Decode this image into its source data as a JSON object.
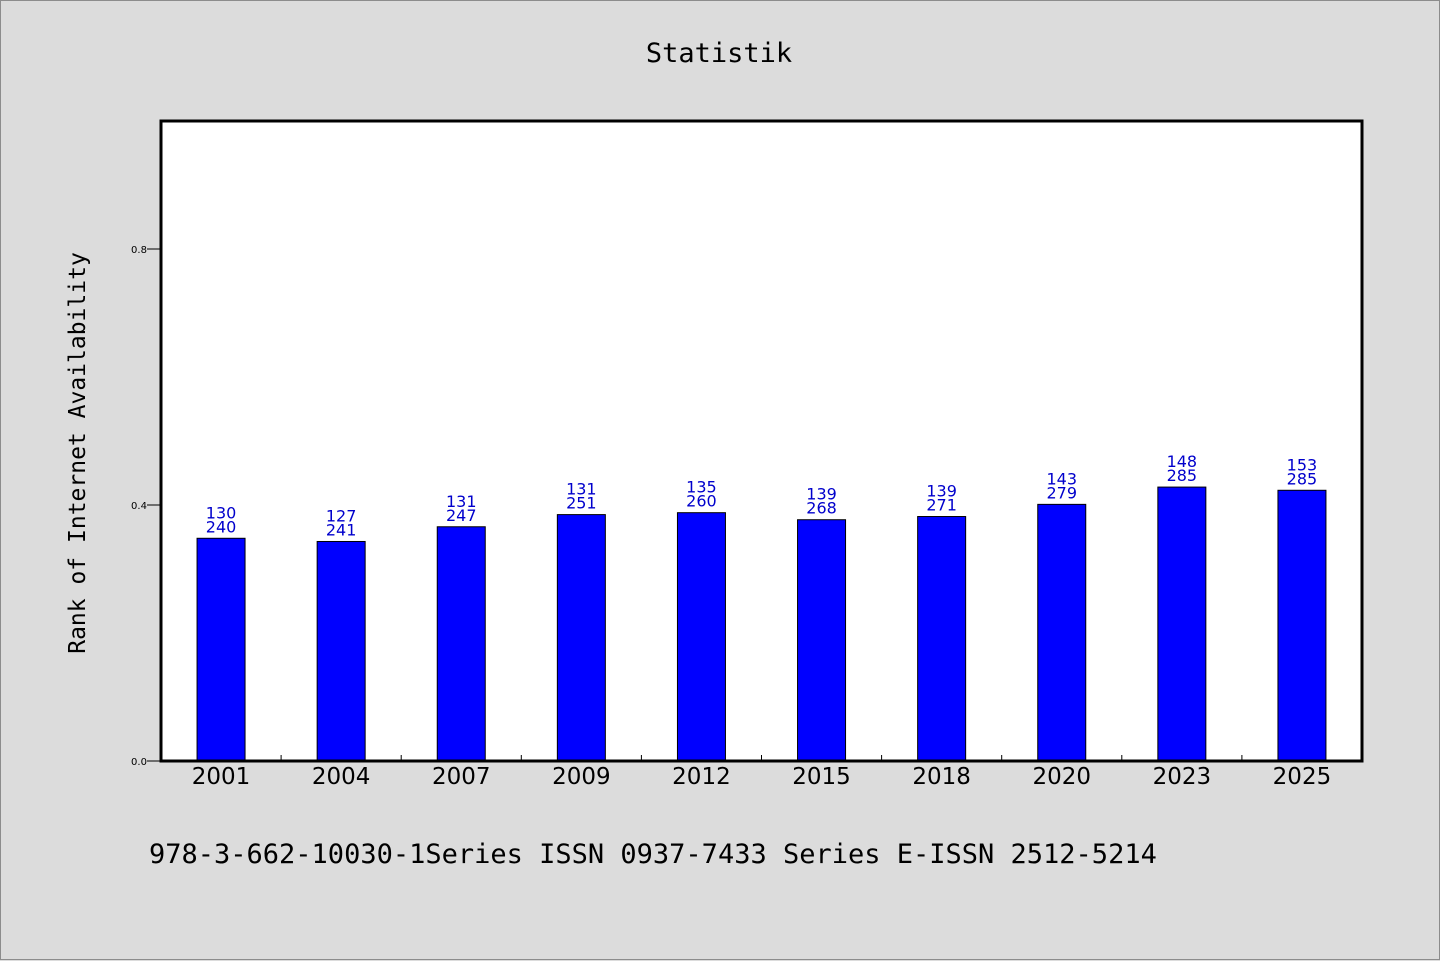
{
  "chart_data": {
    "type": "bar",
    "title": "Statistik",
    "xlabel": "",
    "ylabel": "Rank of Internet Availability",
    "categories": [
      "2001",
      "2004",
      "2007",
      "2009",
      "2012",
      "2015",
      "2018",
      "2020",
      "2023",
      "2025"
    ],
    "values": [
      0.348,
      0.343,
      0.366,
      0.385,
      0.388,
      0.377,
      0.382,
      0.401,
      0.428,
      0.423
    ],
    "data_labels_top": [
      "130",
      "127",
      "131",
      "131",
      "135",
      "139",
      "139",
      "143",
      "148",
      "153"
    ],
    "data_labels_bottom": [
      "240",
      "241",
      "247",
      "251",
      "260",
      "268",
      "271",
      "279",
      "285",
      "285"
    ],
    "yticks": [
      "0.0",
      "0.4",
      "0.8"
    ],
    "ytick_values": [
      0.0,
      0.4,
      0.8
    ],
    "ylim": [
      0,
      1.0
    ],
    "grid": false,
    "bar_color": "#0000ff",
    "label_color": "#0000cc",
    "background_color": "#dcdcdc",
    "plot_background": "#ffffff"
  },
  "footer": {
    "text": "978-3-662-10030-1Series ISSN 0937-7433 Series E-ISSN 2512-5214"
  }
}
